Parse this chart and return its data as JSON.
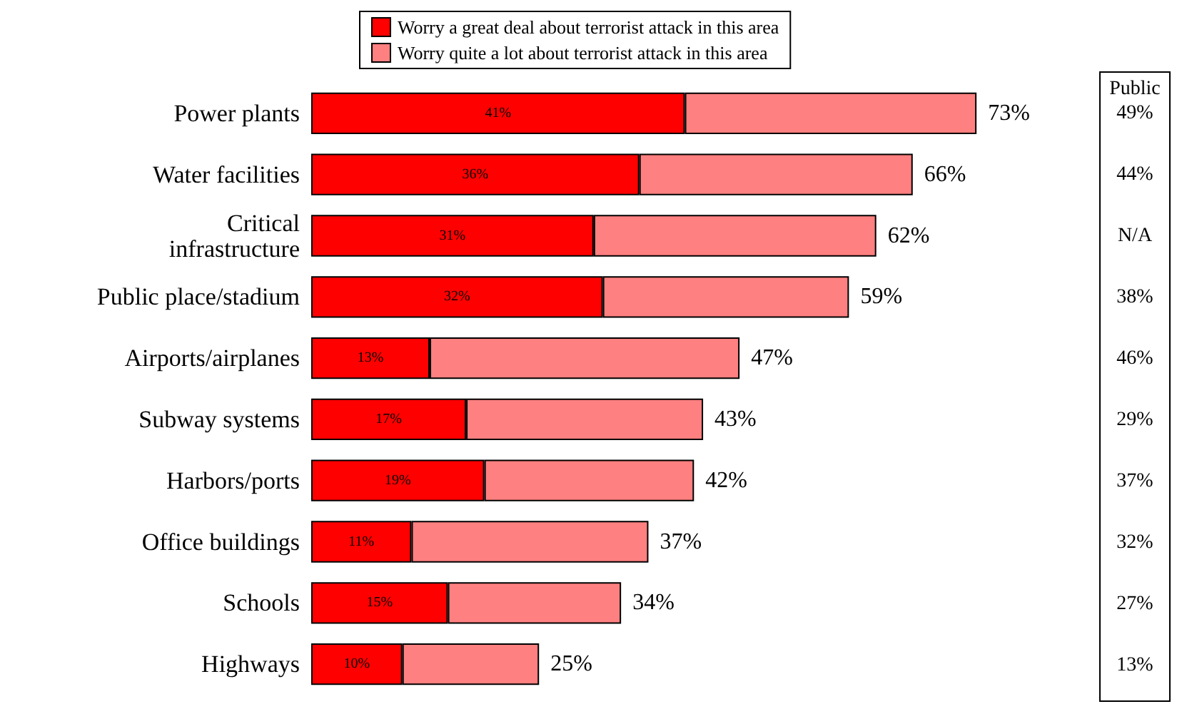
{
  "chart_data": [
    {
      "type": "bar",
      "orientation": "horizontal",
      "stacked": true,
      "legend": "top",
      "categories": [
        "Power plants",
        "Water facilities",
        "Critical\ninfrastructure",
        "Public place/stadium",
        "Airports/airplanes",
        "Subway systems",
        "Harbors/ports",
        "Office buildings",
        "Schools",
        "Highways"
      ],
      "series": [
        {
          "name": "Worry a great deal about terrorist attack in this area",
          "color": "#ff0000",
          "values": [
            41,
            36,
            31,
            32,
            13,
            17,
            19,
            11,
            15,
            10
          ],
          "value_labels": [
            "41%",
            "36%",
            "31%",
            "32%",
            "13%",
            "17%",
            "19%",
            "11%",
            "15%",
            "10%"
          ]
        },
        {
          "name": "Worry quite a lot about terrorist attack in this area",
          "color": "#ff8080",
          "values": [
            32,
            30,
            31,
            27,
            34,
            26,
            23,
            26,
            19,
            15
          ]
        }
      ],
      "totals": [
        "73%",
        "66%",
        "62%",
        "59%",
        "47%",
        "43%",
        "42%",
        "37%",
        "34%",
        "25%"
      ]
    },
    {
      "type": "other",
      "title": "Public",
      "annotations": [
        "49%",
        "44%",
        "N/A",
        "38%",
        "46%",
        "29%",
        "37%",
        "32%",
        "27%",
        "13%"
      ]
    }
  ]
}
